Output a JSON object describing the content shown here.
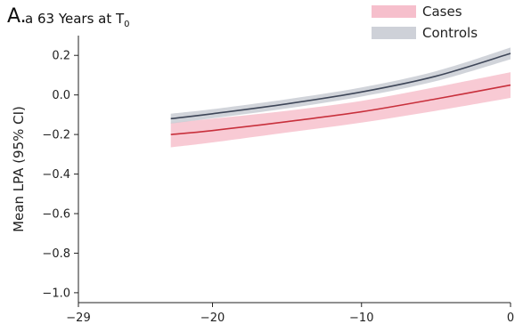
{
  "header": {
    "panel": "A.",
    "title": "a 63 Years at T",
    "title_sub": "0"
  },
  "chart_data": {
    "type": "line",
    "title": "a 63 Years at T0",
    "xlabel": "",
    "ylabel": "Mean LPA (95% CI)",
    "xlim": [
      -29,
      0
    ],
    "ylim": [
      -1.05,
      0.3
    ],
    "xticks": [
      -29,
      -20,
      -10,
      0
    ],
    "xtick_labels": [
      "−29",
      "−20",
      "−10",
      "0"
    ],
    "yticks": [
      0.2,
      0.0,
      -0.2,
      -0.4,
      -0.6,
      -0.8,
      -1.0
    ],
    "ytick_labels": [
      "0.2",
      "0.0",
      "−0.2",
      "−0.4",
      "−0.6",
      "−0.8",
      "−1.0"
    ],
    "legend_position": "top-right",
    "x": [
      -22.8,
      -20,
      -15,
      -10,
      -5,
      0
    ],
    "series": [
      {
        "name": "Cases",
        "line_color": "#c8303c",
        "band_color": "#f5b8c6",
        "mean": [
          -0.2,
          -0.18,
          -0.135,
          -0.085,
          -0.02,
          0.05
        ],
        "lower": [
          -0.265,
          -0.24,
          -0.19,
          -0.14,
          -0.08,
          -0.015
        ],
        "upper": [
          -0.14,
          -0.12,
          -0.08,
          -0.03,
          0.04,
          0.115
        ]
      },
      {
        "name": "Controls",
        "line_color": "#3e4658",
        "band_color": "#c9ccd4",
        "mean": [
          -0.12,
          -0.095,
          -0.045,
          0.015,
          0.095,
          0.21
        ],
        "lower": [
          -0.145,
          -0.118,
          -0.068,
          -0.008,
          0.07,
          0.18
        ],
        "upper": [
          -0.095,
          -0.072,
          -0.022,
          0.038,
          0.12,
          0.24
        ]
      }
    ]
  }
}
